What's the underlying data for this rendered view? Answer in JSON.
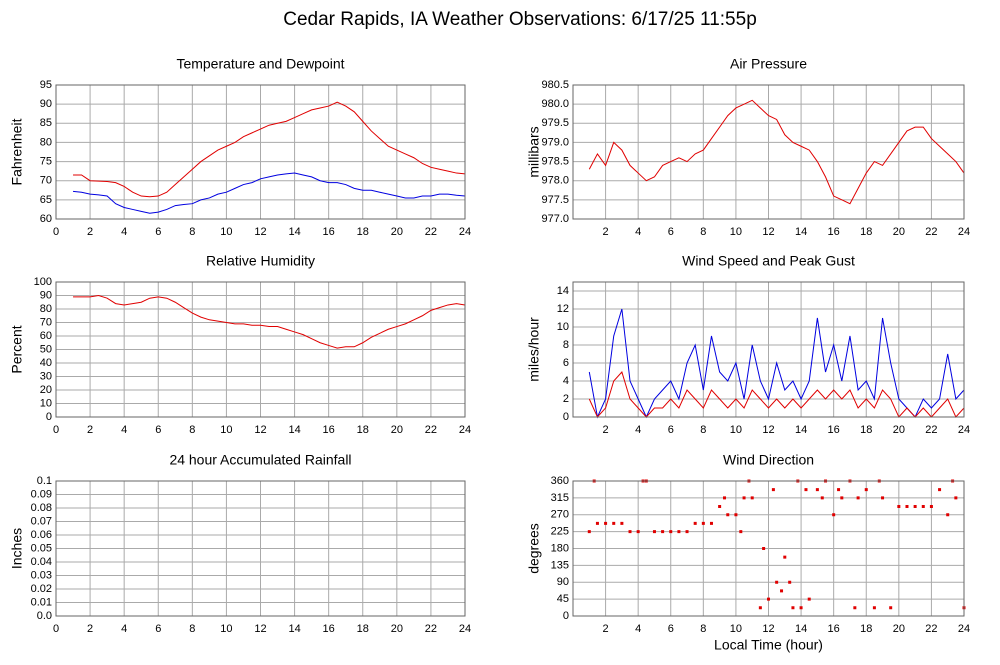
{
  "title": "Cedar Rapids, IA Weather Observations: 6/17/25 11:55p",
  "chart_data": [
    {
      "type": "line",
      "title": "Temperature and Dewpoint",
      "ylabel": "Fahrenheit",
      "xlim": [
        0,
        24
      ],
      "xticks": [
        0,
        2,
        4,
        6,
        8,
        10,
        12,
        14,
        16,
        18,
        20,
        22,
        24
      ],
      "ylim": [
        60,
        95
      ],
      "yticks": [
        60,
        65,
        70,
        75,
        80,
        85,
        90,
        95
      ],
      "grid": true,
      "x": [
        1,
        1.5,
        2,
        2.5,
        3,
        3.5,
        4,
        4.5,
        5,
        5.5,
        6,
        6.5,
        7,
        7.5,
        8,
        8.5,
        9,
        9.5,
        10,
        10.5,
        11,
        11.5,
        12,
        12.5,
        13,
        13.5,
        14,
        14.5,
        15,
        15.5,
        16,
        16.5,
        17,
        17.5,
        18,
        18.5,
        19,
        19.5,
        20,
        20.5,
        21,
        21.5,
        22,
        22.5,
        23,
        23.5,
        24
      ],
      "series": [
        {
          "color": "#e00000",
          "values": [
            71.5,
            71.5,
            70,
            69.9,
            69.8,
            69.5,
            68.5,
            67,
            66,
            65.8,
            66,
            67,
            69,
            71,
            73,
            75,
            76.5,
            78,
            79,
            80,
            81.5,
            82.5,
            83.5,
            84.5,
            85,
            85.5,
            86.5,
            87.5,
            88.5,
            89,
            89.5,
            90.5,
            89.5,
            88,
            85.5,
            83,
            81,
            79,
            78,
            77,
            76,
            74.5,
            73.5,
            73,
            72.5,
            72,
            71.8
          ]
        },
        {
          "color": "#0000e0",
          "values": [
            67.2,
            67,
            66.5,
            66.3,
            66,
            64,
            63,
            62.5,
            62,
            61.5,
            61.8,
            62.5,
            63.5,
            63.8,
            64,
            65,
            65.5,
            66.5,
            67,
            68,
            69,
            69.5,
            70.5,
            71,
            71.5,
            71.8,
            72,
            71.5,
            71,
            70,
            69.5,
            69.5,
            69,
            68,
            67.5,
            67.5,
            67,
            66.5,
            66,
            65.5,
            65.5,
            66,
            66,
            66.5,
            66.5,
            66.2,
            66
          ]
        }
      ]
    },
    {
      "type": "line",
      "title": "Air Pressure",
      "ylabel": "millibars",
      "xlim": [
        0,
        24
      ],
      "xticks": [
        2,
        4,
        6,
        8,
        10,
        12,
        14,
        16,
        18,
        20,
        22,
        24
      ],
      "ylim": [
        977,
        980.5
      ],
      "yticks": [
        {
          "value": 977,
          "label": "977.0"
        },
        977.5,
        {
          "value": 978,
          "label": "978.0"
        },
        978.5,
        {
          "value": 979,
          "label": "979.0"
        },
        979.5,
        {
          "value": 980,
          "label": "980.0"
        },
        980.5
      ],
      "grid": true,
      "x": [
        1,
        1.5,
        2,
        2.5,
        3,
        3.5,
        4,
        4.5,
        5,
        5.5,
        6,
        6.5,
        7,
        7.5,
        8,
        8.5,
        9,
        9.5,
        10,
        10.5,
        11,
        11.5,
        12,
        12.5,
        13,
        13.5,
        14,
        14.5,
        15,
        15.5,
        16,
        16.5,
        17,
        17.5,
        18,
        18.5,
        19,
        19.5,
        20,
        20.5,
        21,
        21.5,
        22,
        22.5,
        23,
        23.5,
        24
      ],
      "series": [
        {
          "color": "#e00000",
          "values": [
            978.3,
            978.7,
            978.4,
            979.0,
            978.8,
            978.4,
            978.2,
            978.0,
            978.1,
            978.4,
            978.5,
            978.6,
            978.5,
            978.7,
            978.8,
            979.1,
            979.4,
            979.7,
            979.9,
            980.0,
            980.1,
            979.9,
            979.7,
            979.6,
            979.2,
            979.0,
            978.9,
            978.8,
            978.5,
            978.1,
            977.6,
            977.5,
            977.4,
            977.8,
            978.2,
            978.5,
            978.4,
            978.7,
            979.0,
            979.3,
            979.4,
            979.4,
            979.1,
            978.9,
            978.7,
            978.5,
            978.2
          ]
        }
      ]
    },
    {
      "type": "line",
      "title": "Relative Humidity",
      "ylabel": "Percent",
      "xlim": [
        0,
        24
      ],
      "xticks": [
        0,
        2,
        4,
        6,
        8,
        10,
        12,
        14,
        16,
        18,
        20,
        22,
        24
      ],
      "ylim": [
        0,
        100
      ],
      "yticks": [
        0,
        10,
        20,
        30,
        40,
        50,
        60,
        70,
        80,
        90,
        100
      ],
      "grid": true,
      "x": [
        1,
        1.5,
        2,
        2.5,
        3,
        3.5,
        4,
        4.5,
        5,
        5.5,
        6,
        6.5,
        7,
        7.5,
        8,
        8.5,
        9,
        9.5,
        10,
        10.5,
        11,
        11.5,
        12,
        12.5,
        13,
        13.5,
        14,
        14.5,
        15,
        15.5,
        16,
        16.5,
        17,
        17.5,
        18,
        18.5,
        19,
        19.5,
        20,
        20.5,
        21,
        21.5,
        22,
        22.5,
        23,
        23.5,
        24
      ],
      "series": [
        {
          "color": "#e00000",
          "values": [
            89,
            89,
            89,
            90,
            88,
            84,
            83,
            84,
            85,
            88,
            89,
            88,
            85,
            81,
            77,
            74,
            72,
            71,
            70,
            69,
            69,
            68,
            68,
            67,
            67,
            65,
            63,
            61,
            58,
            55,
            53,
            51,
            52,
            52,
            55,
            59,
            62,
            65,
            67,
            69,
            72,
            75,
            79,
            81,
            83,
            84,
            83
          ]
        }
      ]
    },
    {
      "type": "line",
      "title": "Wind Speed and Peak Gust",
      "ylabel": "miles/hour",
      "xlim": [
        0,
        24
      ],
      "xticks": [
        2,
        4,
        6,
        8,
        10,
        12,
        14,
        16,
        18,
        20,
        22,
        24
      ],
      "ylim": [
        0,
        15
      ],
      "yticks": [
        0,
        2,
        4,
        6,
        8,
        10,
        12,
        14
      ],
      "grid": true,
      "x": [
        1,
        1.5,
        2,
        2.5,
        3,
        3.5,
        4,
        4.5,
        5,
        5.5,
        6,
        6.5,
        7,
        7.5,
        8,
        8.5,
        9,
        9.5,
        10,
        10.5,
        11,
        11.5,
        12,
        12.5,
        13,
        13.5,
        14,
        14.5,
        15,
        15.5,
        16,
        16.5,
        17,
        17.5,
        18,
        18.5,
        19,
        19.5,
        20,
        20.5,
        21,
        21.5,
        22,
        22.5,
        23,
        23.5,
        24
      ],
      "series": [
        {
          "color": "#0000e0",
          "values": [
            5,
            0,
            2,
            9,
            12,
            4,
            2,
            0,
            2,
            3,
            4,
            2,
            6,
            8,
            3,
            9,
            5,
            4,
            6,
            2,
            8,
            4,
            2,
            6,
            3,
            4,
            2,
            4,
            11,
            5,
            8,
            4,
            9,
            3,
            4,
            2,
            11,
            6,
            2,
            1,
            0,
            2,
            1,
            2,
            7,
            2,
            3
          ]
        },
        {
          "color": "#e00000",
          "values": [
            2,
            0,
            1,
            4,
            5,
            2,
            1,
            0,
            1,
            1,
            2,
            1,
            3,
            2,
            1,
            3,
            2,
            1,
            2,
            1,
            3,
            2,
            1,
            2,
            1,
            2,
            1,
            2,
            3,
            2,
            3,
            2,
            3,
            1,
            2,
            1,
            3,
            2,
            0,
            1,
            0,
            1,
            0,
            1,
            2,
            0,
            1
          ]
        }
      ]
    },
    {
      "type": "line",
      "title": "24 hour Accumulated Rainfall",
      "ylabel": "Inches",
      "xlim": [
        0,
        24
      ],
      "xticks": [
        0,
        2,
        4,
        6,
        8,
        10,
        12,
        14,
        16,
        18,
        20,
        22,
        24
      ],
      "ylim": [
        0,
        0.1
      ],
      "yticks": [
        {
          "value": 0,
          "label": "0.0"
        },
        0.01,
        0.02,
        0.03,
        0.04,
        0.05,
        0.06,
        0.07,
        0.08,
        0.09,
        0.1
      ],
      "grid": true,
      "x": [
        1,
        24
      ],
      "series": [
        {
          "color": "#c00030",
          "values": [
            0,
            0
          ]
        }
      ]
    },
    {
      "type": "scatter",
      "title": "Wind Direction",
      "ylabel": "degrees",
      "xlabel": "Local Time (hour)",
      "xlim": [
        0,
        24
      ],
      "xticks": [
        2,
        4,
        6,
        8,
        10,
        12,
        14,
        16,
        18,
        20,
        22,
        24
      ],
      "ylim": [
        0,
        360
      ],
      "yticks": [
        0,
        45,
        90,
        135,
        180,
        225,
        270,
        315,
        360
      ],
      "grid": true,
      "color": "#e00000",
      "x": [
        1,
        1.3,
        1.5,
        2,
        2.5,
        3,
        3.5,
        4,
        4.3,
        4.5,
        5,
        5.5,
        6,
        6.5,
        7,
        7.5,
        8,
        8.5,
        9,
        9.3,
        9.5,
        10,
        10.3,
        10.5,
        10.8,
        11,
        11.5,
        11.7,
        12,
        12.3,
        12.5,
        12.8,
        13,
        13.3,
        13.5,
        13.8,
        14,
        14.3,
        14.5,
        15,
        15.3,
        15.5,
        16,
        16.3,
        16.5,
        17,
        17.3,
        17.5,
        18,
        18.5,
        18.8,
        19,
        19.5,
        20,
        20.5,
        21,
        21.5,
        22,
        22.5,
        23,
        23.3,
        23.5,
        24
      ],
      "values": [
        225,
        360,
        247,
        247,
        247,
        247,
        225,
        225,
        360,
        360,
        225,
        225,
        225,
        225,
        225,
        247,
        247,
        247,
        292,
        315,
        270,
        270,
        225,
        315,
        360,
        315,
        22,
        180,
        45,
        337,
        90,
        67,
        157,
        90,
        22,
        360,
        22,
        337,
        45,
        337,
        315,
        360,
        270,
        337,
        315,
        360,
        22,
        315,
        337,
        22,
        360,
        315,
        22,
        292,
        292,
        292,
        292,
        292,
        337,
        270,
        360,
        315,
        22
      ]
    }
  ]
}
